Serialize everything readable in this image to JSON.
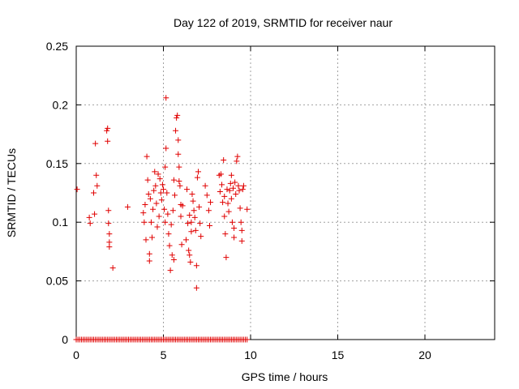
{
  "chart_data": {
    "type": "scatter",
    "title": "Day 122 of 2019, SRMTID for receiver naur",
    "xlabel": "GPS time / hours",
    "ylabel": "SRMTID / TECUs",
    "xlim": [
      0,
      24
    ],
    "ylim": [
      0,
      0.25
    ],
    "xticks": [
      0,
      5,
      10,
      15,
      20
    ],
    "xtick_labels": [
      "0",
      "5",
      "10",
      "15",
      "20"
    ],
    "yticks": [
      0,
      0.05,
      0.1,
      0.15,
      0.2,
      0.25
    ],
    "ytick_labels": [
      "0",
      "0.05",
      "0.1",
      "0.15",
      "0.2",
      "0.25"
    ],
    "grid": true,
    "marker": "+",
    "color": "#e00000",
    "series": [
      {
        "points": [
          [
            0.05,
            0.128
          ],
          [
            0.75,
            0.104
          ],
          [
            0.8,
            0.099
          ],
          [
            1.0,
            0.125
          ],
          [
            1.05,
            0.107
          ],
          [
            1.1,
            0.167
          ],
          [
            1.15,
            0.14
          ],
          [
            1.2,
            0.131
          ],
          [
            1.75,
            0.178
          ],
          [
            1.8,
            0.18
          ],
          [
            1.8,
            0.169
          ],
          [
            1.85,
            0.11
          ],
          [
            1.85,
            0.099
          ],
          [
            1.9,
            0.09
          ],
          [
            1.9,
            0.083
          ],
          [
            1.9,
            0.079
          ],
          [
            2.1,
            0.061
          ],
          [
            2.95,
            0.113
          ],
          [
            3.85,
            0.108
          ],
          [
            3.9,
            0.1
          ],
          [
            3.95,
            0.115
          ],
          [
            4.0,
            0.085
          ],
          [
            4.05,
            0.156
          ],
          [
            4.1,
            0.136
          ],
          [
            4.15,
            0.124
          ],
          [
            4.2,
            0.073
          ],
          [
            4.2,
            0.067
          ],
          [
            4.25,
            0.12
          ],
          [
            4.3,
            0.1
          ],
          [
            4.35,
            0.087
          ],
          [
            4.4,
            0.111
          ],
          [
            4.45,
            0.127
          ],
          [
            4.5,
            0.143
          ],
          [
            4.55,
            0.131
          ],
          [
            4.6,
            0.116
          ],
          [
            4.65,
            0.096
          ],
          [
            4.7,
            0.141
          ],
          [
            4.75,
            0.105
          ],
          [
            4.8,
            0.137
          ],
          [
            4.85,
            0.125
          ],
          [
            4.9,
            0.119
          ],
          [
            4.95,
            0.132
          ],
          [
            5.0,
            0.128
          ],
          [
            5.05,
            0.111
          ],
          [
            5.1,
            0.147
          ],
          [
            5.1,
            0.1
          ],
          [
            5.15,
            0.206
          ],
          [
            5.15,
            0.163
          ],
          [
            5.2,
            0.125
          ],
          [
            5.25,
            0.107
          ],
          [
            5.3,
            0.09
          ],
          [
            5.35,
            0.08
          ],
          [
            5.4,
            0.059
          ],
          [
            5.45,
            0.098
          ],
          [
            5.5,
            0.072
          ],
          [
            5.55,
            0.11
          ],
          [
            5.6,
            0.136
          ],
          [
            5.6,
            0.068
          ],
          [
            5.65,
            0.123
          ],
          [
            5.7,
            0.178
          ],
          [
            5.75,
            0.189
          ],
          [
            5.8,
            0.191
          ],
          [
            5.85,
            0.17
          ],
          [
            5.85,
            0.158
          ],
          [
            5.9,
            0.147
          ],
          [
            5.9,
            0.135
          ],
          [
            5.95,
            0.131
          ],
          [
            6.0,
            0.115
          ],
          [
            6.0,
            0.105
          ],
          [
            6.05,
            0.081
          ],
          [
            6.1,
            0.114
          ],
          [
            6.3,
            0.085
          ],
          [
            6.35,
            0.128
          ],
          [
            6.4,
            0.099
          ],
          [
            6.45,
            0.076
          ],
          [
            6.5,
            0.106
          ],
          [
            6.5,
            0.072
          ],
          [
            6.55,
            0.066
          ],
          [
            6.6,
            0.1
          ],
          [
            6.6,
            0.092
          ],
          [
            6.65,
            0.124
          ],
          [
            6.7,
            0.118
          ],
          [
            6.75,
            0.11
          ],
          [
            6.8,
            0.104
          ],
          [
            6.85,
            0.093
          ],
          [
            6.9,
            0.063
          ],
          [
            6.9,
            0.044
          ],
          [
            6.95,
            0.138
          ],
          [
            7.0,
            0.143
          ],
          [
            7.05,
            0.113
          ],
          [
            7.1,
            0.099
          ],
          [
            7.15,
            0.088
          ],
          [
            7.4,
            0.131
          ],
          [
            7.5,
            0.123
          ],
          [
            7.6,
            0.11
          ],
          [
            7.65,
            0.097
          ],
          [
            7.7,
            0.117
          ],
          [
            8.2,
            0.14
          ],
          [
            8.25,
            0.126
          ],
          [
            8.3,
            0.141
          ],
          [
            8.35,
            0.132
          ],
          [
            8.4,
            0.117
          ],
          [
            8.45,
            0.153
          ],
          [
            8.5,
            0.122
          ],
          [
            8.5,
            0.105
          ],
          [
            8.55,
            0.09
          ],
          [
            8.6,
            0.07
          ],
          [
            8.65,
            0.128
          ],
          [
            8.7,
            0.116
          ],
          [
            8.75,
            0.109
          ],
          [
            8.8,
            0.127
          ],
          [
            8.85,
            0.133
          ],
          [
            8.9,
            0.12
          ],
          [
            8.9,
            0.14
          ],
          [
            8.95,
            0.1
          ],
          [
            9.0,
            0.129
          ],
          [
            9.05,
            0.087
          ],
          [
            9.05,
            0.095
          ],
          [
            9.1,
            0.134
          ],
          [
            9.15,
            0.124
          ],
          [
            9.2,
            0.152
          ],
          [
            9.25,
            0.156
          ],
          [
            9.3,
            0.131
          ],
          [
            9.35,
            0.127
          ],
          [
            9.4,
            0.112
          ],
          [
            9.45,
            0.1
          ],
          [
            9.5,
            0.084
          ],
          [
            9.5,
            0.093
          ],
          [
            9.55,
            0.128
          ],
          [
            9.6,
            0.131
          ],
          [
            9.8,
            0.111
          ]
        ]
      },
      {
        "x_range": [
          0,
          9.8
        ],
        "x_step": 0.1,
        "y": 0
      }
    ]
  }
}
